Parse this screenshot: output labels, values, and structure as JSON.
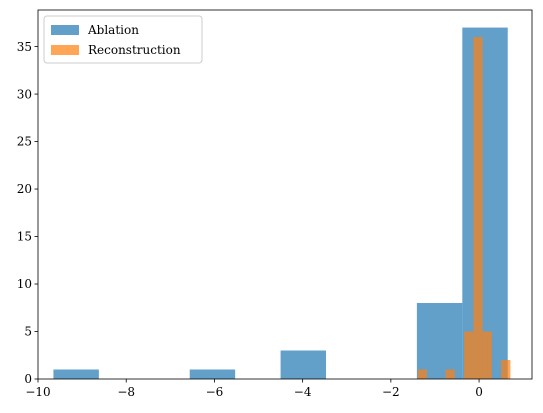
{
  "chart_data": {
    "type": "bar",
    "title": "",
    "xlabel": "",
    "ylabel": "",
    "xlim": [
      -10.0,
      1.2
    ],
    "ylim": [
      0,
      38.85
    ],
    "grid": false,
    "legend_position": "top-left",
    "xticks": [
      {
        "value": -10,
        "label": "−10"
      },
      {
        "value": -8,
        "label": "−8"
      },
      {
        "value": -6,
        "label": "−6"
      },
      {
        "value": -4,
        "label": "−4"
      },
      {
        "value": -2,
        "label": "−2"
      },
      {
        "value": 0,
        "label": "0"
      }
    ],
    "yticks": [
      {
        "value": 0,
        "label": "0"
      },
      {
        "value": 5,
        "label": "5"
      },
      {
        "value": 10,
        "label": "10"
      },
      {
        "value": 15,
        "label": "15"
      },
      {
        "value": 20,
        "label": "20"
      },
      {
        "value": 25,
        "label": "25"
      },
      {
        "value": 30,
        "label": "30"
      },
      {
        "value": 35,
        "label": "35"
      }
    ],
    "series": [
      {
        "name": "Ablation",
        "color": "#1f77b4",
        "bins": [
          {
            "x0": -9.65,
            "x1": -8.62,
            "count": 1
          },
          {
            "x0": -8.62,
            "x1": -7.59,
            "count": 0
          },
          {
            "x0": -7.59,
            "x1": -6.56,
            "count": 0
          },
          {
            "x0": -6.56,
            "x1": -5.53,
            "count": 1
          },
          {
            "x0": -5.53,
            "x1": -4.5,
            "count": 0
          },
          {
            "x0": -4.5,
            "x1": -3.47,
            "count": 3
          },
          {
            "x0": -3.47,
            "x1": -2.44,
            "count": 0
          },
          {
            "x0": -2.44,
            "x1": -1.41,
            "count": 0
          },
          {
            "x0": -1.41,
            "x1": -0.38,
            "count": 8
          },
          {
            "x0": -0.38,
            "x1": 0.65,
            "count": 37
          }
        ]
      },
      {
        "name": "Reconstruction",
        "color": "#ff7f0e",
        "bins": [
          {
            "x0": -1.39,
            "x1": -1.18,
            "count": 1
          },
          {
            "x0": -1.18,
            "x1": -0.97,
            "count": 0
          },
          {
            "x0": -0.97,
            "x1": -0.76,
            "count": 0
          },
          {
            "x0": -0.76,
            "x1": -0.55,
            "count": 1
          },
          {
            "x0": -0.55,
            "x1": -0.34,
            "count": 0
          },
          {
            "x0": -0.34,
            "x1": -0.13,
            "count": 5
          },
          {
            "x0": -0.13,
            "x1": 0.08,
            "count": 36
          },
          {
            "x0": 0.08,
            "x1": 0.29,
            "count": 5
          },
          {
            "x0": 0.29,
            "x1": 0.5,
            "count": 0
          },
          {
            "x0": 0.5,
            "x1": 0.71,
            "count": 2
          }
        ]
      }
    ]
  }
}
